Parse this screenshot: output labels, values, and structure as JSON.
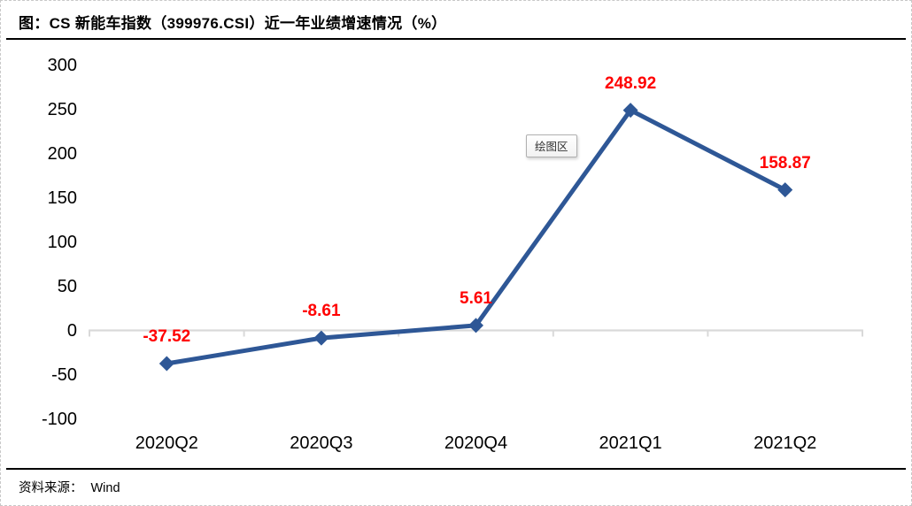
{
  "header": {
    "title": "图：CS 新能车指数（399976.CSI）近一年业绩增速情况（%）"
  },
  "footer": {
    "source_label": "资料来源：",
    "source_value": "Wind"
  },
  "plot_area_tooltip": "绘图区",
  "colors": {
    "line": "#2e5796",
    "marker": "#2e5796",
    "data_label": "#ff0000",
    "gridline": "#d9d9d9",
    "axis_text": "#000000",
    "divider": "#000000"
  },
  "chart_data": {
    "type": "line",
    "title": "图：CS 新能车指数（399976.CSI）近一年业绩增速情况（%）",
    "categories": [
      "2020Q2",
      "2020Q3",
      "2020Q4",
      "2021Q1",
      "2021Q2"
    ],
    "values": [
      -37.52,
      -8.61,
      5.61,
      248.92,
      158.87
    ],
    "data_labels": [
      "-37.52",
      "-8.61",
      "5.61",
      "248.92",
      "158.87"
    ],
    "y_ticks": [
      300,
      250,
      200,
      150,
      100,
      50,
      0,
      -50,
      -100
    ],
    "ylim": [
      -100,
      300
    ],
    "xlabel": "",
    "ylabel": "",
    "legend": "none",
    "grid": "zero-baseline-only",
    "marker": "diamond"
  }
}
